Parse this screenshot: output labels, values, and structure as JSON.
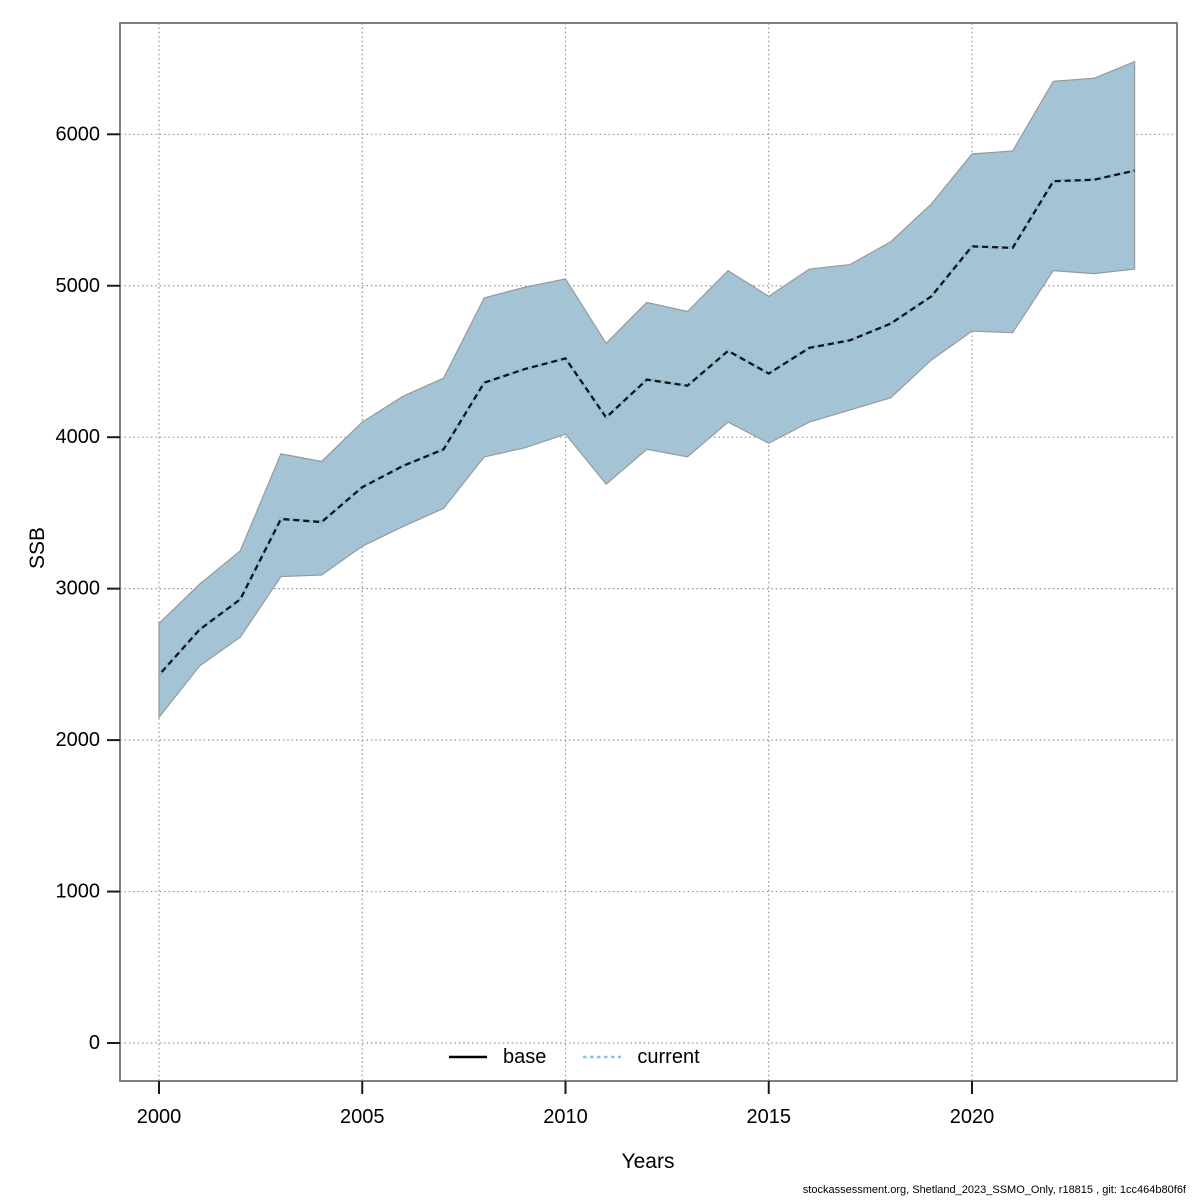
{
  "footer": "stockassessment.org, Shetland_2023_SSMO_Only, r18815 , git: 1cc464b80f6f",
  "chart_data": {
    "type": "area",
    "title": "",
    "xlabel": "Years",
    "ylabel": "SSB",
    "x": [
      2000,
      2001,
      2002,
      2003,
      2004,
      2005,
      2006,
      2007,
      2008,
      2009,
      2010,
      2011,
      2012,
      2013,
      2014,
      2015,
      2016,
      2017,
      2018,
      2019,
      2020,
      2021,
      2022,
      2023,
      2024
    ],
    "series": [
      {
        "name": "base",
        "style": "solid",
        "values": [
          2430,
          2730,
          2930,
          3460,
          3440,
          3670,
          3810,
          3920,
          4360,
          4450,
          4520,
          4130,
          4380,
          4340,
          4570,
          4420,
          4590,
          4640,
          4750,
          4930,
          5260,
          5250,
          5690,
          5700,
          5760
        ]
      },
      {
        "name": "current",
        "style": "dotted",
        "values": [
          2430,
          2730,
          2930,
          3460,
          3440,
          3670,
          3810,
          3920,
          4360,
          4450,
          4520,
          4130,
          4380,
          4340,
          4570,
          4420,
          4590,
          4640,
          4750,
          4930,
          5260,
          5250,
          5690,
          5700,
          5760
        ]
      }
    ],
    "band": {
      "name": "confidence-band",
      "lower": [
        2150,
        2490,
        2680,
        3080,
        3090,
        3280,
        3410,
        3530,
        3870,
        3930,
        4020,
        3690,
        3920,
        3870,
        4100,
        3960,
        4100,
        4180,
        4260,
        4510,
        4700,
        4690,
        5100,
        5080,
        5110
      ],
      "upper": [
        2770,
        3030,
        3250,
        3890,
        3840,
        4100,
        4270,
        4390,
        4920,
        4990,
        5045,
        4620,
        4890,
        4830,
        5100,
        4930,
        5110,
        5140,
        5290,
        5540,
        5870,
        5890,
        6350,
        6370,
        6480
      ]
    },
    "x_ticks": [
      2000,
      2005,
      2010,
      2015,
      2020
    ],
    "y_ticks": [
      0,
      1000,
      2000,
      3000,
      4000,
      5000,
      6000
    ],
    "xlim": [
      2000,
      2024
    ],
    "ylim": [
      0,
      6000
    ],
    "grid": "dotted",
    "legend_position": "bottom-center",
    "legend": [
      {
        "label": "base",
        "line": "solid",
        "color": "#000000"
      },
      {
        "label": "current",
        "line": "dotted",
        "color": "#8cc3e4"
      }
    ],
    "colors": {
      "band_fill": "#a4c3d5",
      "band_edge": "#949a9e",
      "base_line": "#111111",
      "current_line": "#8cc3e4",
      "grid": "#999999",
      "frame": "#7f7f7f",
      "tick": "#1a1a1a",
      "text": "#000000"
    }
  }
}
